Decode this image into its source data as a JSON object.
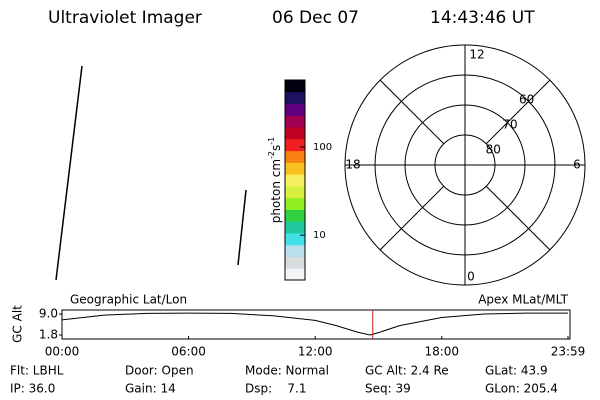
{
  "header": {
    "title": "Ultraviolet Imager",
    "date": "06 Dec 07",
    "time": "14:43:46 UT"
  },
  "colorbar": {
    "label_parts": [
      "photon cm",
      "-2",
      "s",
      "-1"
    ],
    "log_scale": true,
    "lim": [
      3.1,
      575
    ],
    "ticks": [
      10,
      100
    ],
    "colors": [
      "#f4f4f4",
      "#d8dde0",
      "#b8e0ec",
      "#40e0e8",
      "#20c8a0",
      "#30d040",
      "#90f020",
      "#d8f040",
      "#f8f060",
      "#f8c020",
      "#f88010",
      "#f02020",
      "#c00020",
      "#a00050",
      "#600080",
      "#201060",
      "#000010"
    ]
  },
  "polar": {
    "rings": [
      80,
      70,
      60
    ],
    "min_lat": 50,
    "mlt_labels": {
      "top": "12",
      "right": "6",
      "bottom": "0",
      "left": "18"
    }
  },
  "altitude_plot": {
    "y_label": "GC Alt",
    "left_label": "Geographic Lat/Lon",
    "right_label": "Apex MLat/MLT",
    "ylim": [
      1.8,
      9.0
    ],
    "yticks": [
      {
        "value": 9.0,
        "label": "9.0"
      },
      {
        "value": 1.8,
        "label": "1.8"
      }
    ],
    "xlim": [
      0,
      23.983
    ],
    "xticks": [
      {
        "value": 0,
        "label": "00:00"
      },
      {
        "value": 6,
        "label": "06:00"
      },
      {
        "value": 12,
        "label": "12:00"
      },
      {
        "value": 18,
        "label": "18:00"
      },
      {
        "value": 23.983,
        "label": "23:59"
      }
    ],
    "x": [
      0,
      2,
      4,
      6,
      8,
      10,
      12,
      13,
      14,
      14.6,
      15,
      16,
      18,
      20,
      22,
      23.983
    ],
    "values": [
      7.0,
      8.6,
      9.2,
      9.3,
      9.2,
      8.4,
      6.8,
      5.0,
      2.8,
      1.8,
      2.6,
      5.0,
      7.8,
      9.0,
      9.3,
      9.3
    ],
    "marker_time": 14.729,
    "marker_color": "#d02020"
  },
  "footer": {
    "rows": [
      [
        "Flt: LBHL",
        "Door: Open",
        "Mode: Normal",
        "GC Alt: 2.4 Re",
        "GLat: 43.9"
      ],
      [
        "IP: 36.0",
        "Gain: 14",
        "Dsp:    7.1",
        "Seq: 39",
        "GLon: 205.4"
      ]
    ]
  }
}
